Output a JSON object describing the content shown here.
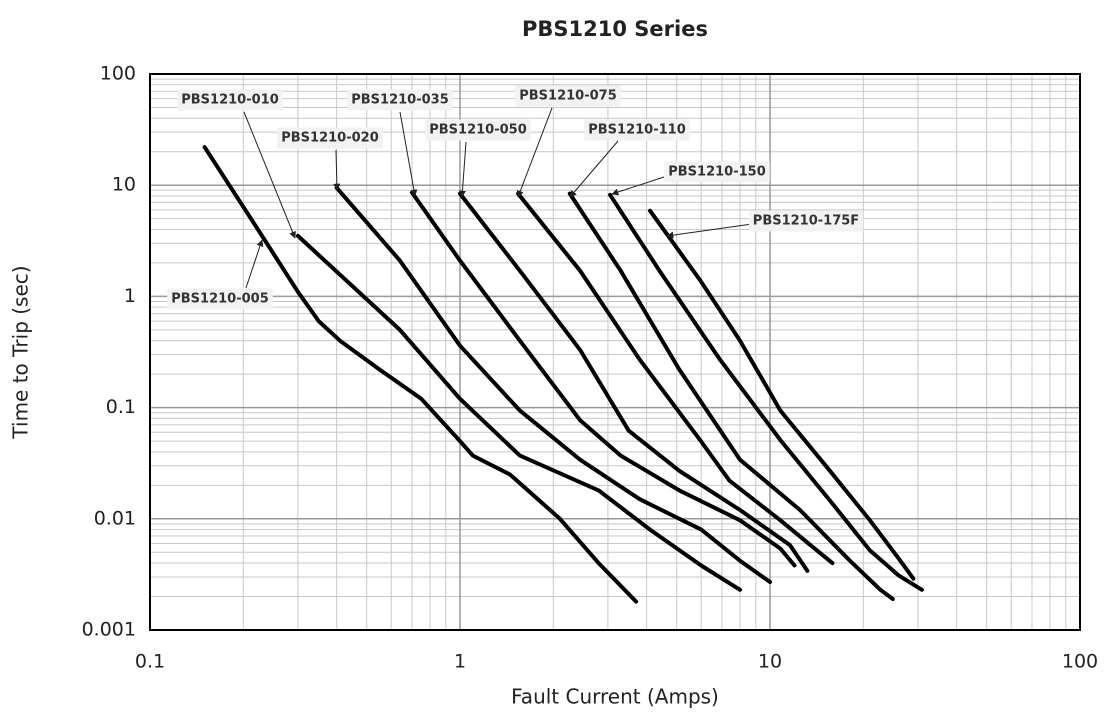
{
  "chart_data": {
    "type": "line",
    "title": "PBS1210 Series",
    "x_label": "Fault Current (Amps)",
    "y_label": "Time to Trip (sec)",
    "x_scale": "log",
    "y_scale": "log",
    "xlim": [
      0.1,
      100
    ],
    "ylim": [
      0.001,
      100
    ],
    "xticks": [
      0.1,
      1,
      10,
      100
    ],
    "yticks": [
      0.001,
      0.01,
      0.1,
      1,
      10,
      100
    ],
    "grid": true,
    "minor_grid": true,
    "series": [
      {
        "name": "PBS1210-005",
        "color": "#000000",
        "x": [
          0.15,
          0.23,
          0.3,
          0.35,
          0.41,
          0.55,
          0.75,
          1,
          1.1,
          1.45,
          2.1,
          2.8,
          3.7
        ],
        "values": [
          22,
          3.5,
          1.1,
          0.6,
          0.4,
          0.22,
          0.12,
          0.05,
          0.037,
          0.025,
          0.01,
          0.004,
          0.0018
        ]
      },
      {
        "name": "PBS1210-010",
        "color": "#000000",
        "x": [
          0.3,
          0.64,
          1,
          1.56,
          2.8,
          4.1,
          6,
          8
        ],
        "values": [
          3.5,
          0.5,
          0.12,
          0.037,
          0.018,
          0.008,
          0.0038,
          0.0023
        ]
      },
      {
        "name": "PBS1210-020",
        "color": "#000000",
        "x": [
          0.4,
          0.64,
          1,
          1.56,
          2.44,
          3.8,
          6,
          8,
          10
        ],
        "values": [
          9.5,
          2.1,
          0.36,
          0.094,
          0.034,
          0.015,
          0.008,
          0.0042,
          0.0027
        ]
      },
      {
        "name": "PBS1210-035",
        "color": "#000000",
        "x": [
          0.7,
          1,
          1.56,
          2.44,
          3.3,
          5.1,
          8,
          10.8,
          12
        ],
        "values": [
          8.6,
          2.1,
          0.4,
          0.077,
          0.037,
          0.018,
          0.0097,
          0.0054,
          0.0038
        ]
      },
      {
        "name": "PBS1210-050",
        "color": "#000000",
        "x": [
          1,
          1.56,
          2.44,
          3.5,
          5.1,
          8,
          11.6,
          13.2
        ],
        "values": [
          8.4,
          1.7,
          0.33,
          0.062,
          0.027,
          0.012,
          0.0058,
          0.0034
        ]
      },
      {
        "name": "PBS1210-075",
        "color": "#000000",
        "x": [
          1.54,
          2.44,
          3.8,
          5.95,
          7.4,
          10.8,
          13.5,
          15.9
        ],
        "values": [
          8.4,
          1.7,
          0.27,
          0.051,
          0.022,
          0.0097,
          0.0058,
          0.004
        ]
      },
      {
        "name": "PBS1210-110",
        "color": "#000000",
        "x": [
          2.26,
          3.3,
          5.1,
          8,
          12.5,
          18.1,
          22.7,
          24.9
        ],
        "values": [
          8.4,
          1.7,
          0.22,
          0.034,
          0.012,
          0.0042,
          0.0023,
          0.0019
        ]
      },
      {
        "name": "PBS1210-150",
        "color": "#000000",
        "x": [
          3.05,
          4.4,
          6.9,
          10.8,
          15.6,
          21,
          26,
          30.9
        ],
        "values": [
          8.2,
          1.7,
          0.27,
          0.051,
          0.0146,
          0.0052,
          0.0031,
          0.0023
        ]
      },
      {
        "name": "PBS1210-175F",
        "color": "#000000",
        "x": [
          4.1,
          5.95,
          8,
          10.8,
          15.6,
          21,
          26,
          29
        ],
        "values": [
          5.9,
          1.4,
          0.4,
          0.094,
          0.027,
          0.0097,
          0.0044,
          0.0029
        ]
      }
    ]
  }
}
